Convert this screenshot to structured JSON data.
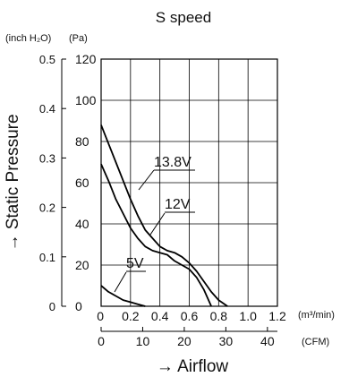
{
  "chart_data": {
    "type": "line",
    "title": "S speed",
    "ylabel": "→ Static Pressure",
    "xlabel": "→ Airflow",
    "grid": true,
    "y_primary": {
      "unit": "(Pa)",
      "ylim": [
        0,
        120
      ],
      "ticks": [
        0,
        20,
        40,
        60,
        80,
        100,
        120
      ],
      "tick_labels": [
        "0",
        "20",
        "40",
        "60",
        "80",
        "100",
        "120"
      ]
    },
    "y_secondary": {
      "unit": "(inch H₂O)",
      "ylim": [
        0,
        0.5
      ],
      "ticks": [
        0,
        0.1,
        0.2,
        0.3,
        0.4,
        0.5
      ],
      "tick_labels": [
        "0",
        "0.1",
        "0.2",
        "0.3",
        "0.4",
        "0.5"
      ]
    },
    "x_primary": {
      "unit": "(m³/min)",
      "xlim": [
        0,
        1.2
      ],
      "ticks": [
        0,
        0.2,
        0.4,
        0.6,
        0.8,
        1.0,
        1.2
      ],
      "tick_labels": [
        "0",
        "0.2",
        "0.4",
        "0.6",
        "0.8",
        "1.0",
        "1.2"
      ]
    },
    "x_secondary": {
      "unit": "(CFM)",
      "xlim": [
        0,
        42.4
      ],
      "ticks": [
        0,
        10,
        20,
        30,
        40
      ],
      "tick_labels": [
        "0",
        "10",
        "20",
        "30",
        "40"
      ]
    },
    "series": [
      {
        "name": "13.8V",
        "x": [
          0,
          0.05,
          0.1,
          0.15,
          0.2,
          0.25,
          0.3,
          0.35,
          0.4,
          0.45,
          0.5,
          0.55,
          0.6,
          0.65,
          0.7,
          0.75,
          0.8,
          0.86
        ],
        "y": [
          88,
          79,
          70,
          61,
          52,
          44,
          37,
          33,
          29,
          27,
          26,
          24,
          21,
          17,
          12,
          7,
          3,
          0
        ]
      },
      {
        "name": "12V",
        "x": [
          0,
          0.05,
          0.1,
          0.15,
          0.2,
          0.25,
          0.3,
          0.35,
          0.4,
          0.45,
          0.5,
          0.55,
          0.6,
          0.65,
          0.7,
          0.75
        ],
        "y": [
          69,
          61,
          52,
          45,
          38,
          33,
          29,
          27,
          26,
          25,
          22,
          20,
          18,
          14,
          8,
          0
        ]
      },
      {
        "name": "5V",
        "x": [
          0,
          0.05,
          0.1,
          0.15,
          0.2,
          0.25,
          0.3
        ],
        "y": [
          10,
          7,
          5,
          3,
          2,
          1,
          0
        ]
      }
    ]
  }
}
